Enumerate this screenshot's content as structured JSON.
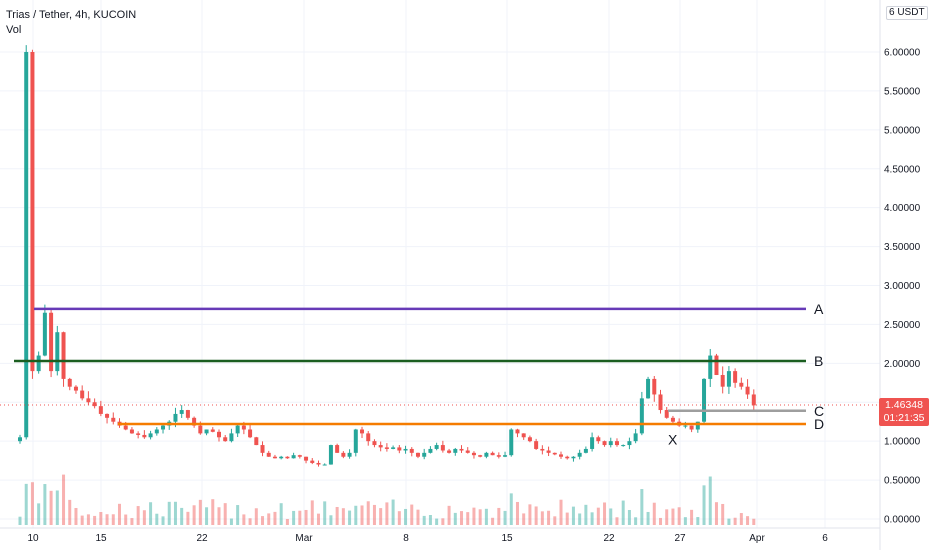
{
  "header": {
    "symbol_line": "Trias / Tether, 4h, KUCOIN",
    "volume_label": "Vol",
    "unit_badge": "6 USDT"
  },
  "price_tag": {
    "price": "1.46348",
    "countdown": "01:21:35",
    "color": "#ef5350"
  },
  "colors": {
    "up": "#26a69a",
    "down": "#ef5350",
    "grid": "#f0f3fa",
    "level_A": "#673ab7",
    "level_B": "#1b5e20",
    "level_C": "#9e9e9e",
    "level_D": "#f57c00"
  },
  "chart_data": {
    "type": "candlestick",
    "title": "Trias / Tether, 4h, KUCOIN",
    "y_ticks": [
      "6.00000",
      "5.50000",
      "5.00000",
      "4.50000",
      "4.00000",
      "3.50000",
      "3.00000",
      "2.50000",
      "2.00000",
      "1.50000",
      "1.00000",
      "0.50000",
      "0.00000"
    ],
    "y_tick_values": [
      6.0,
      5.5,
      5.0,
      4.5,
      4.0,
      3.5,
      3.0,
      2.5,
      2.0,
      1.5,
      1.0,
      0.5,
      0.0
    ],
    "ylim": [
      0,
      6.5
    ],
    "x_ticks": [
      "10",
      "15",
      "22",
      "Mar",
      "8",
      "15",
      "22",
      "27",
      "Apr",
      "6"
    ],
    "grid": true,
    "levels": [
      {
        "label": "A",
        "value": 2.7
      },
      {
        "label": "B",
        "value": 2.03
      },
      {
        "label": "C",
        "value": 1.39
      },
      {
        "label": "D",
        "value": 1.22
      }
    ],
    "annotation": {
      "text": "X",
      "value": 0.98
    },
    "last_price": 1.46348,
    "price_path": [
      [
        0,
        1.0
      ],
      [
        1,
        1.05
      ],
      [
        2,
        6.0
      ],
      [
        3,
        1.9
      ],
      [
        4,
        2.1
      ],
      [
        5,
        2.65
      ],
      [
        6,
        1.9
      ],
      [
        7,
        2.4
      ],
      [
        8,
        1.8
      ],
      [
        9,
        1.7
      ],
      [
        10,
        1.65
      ],
      [
        11,
        1.55
      ],
      [
        12,
        1.5
      ],
      [
        13,
        1.45
      ],
      [
        14,
        1.35
      ],
      [
        15,
        1.3
      ],
      [
        16,
        1.25
      ],
      [
        17,
        1.2
      ],
      [
        18,
        1.15
      ],
      [
        19,
        1.1
      ],
      [
        20,
        1.08
      ],
      [
        21,
        1.05
      ],
      [
        22,
        1.1
      ],
      [
        23,
        1.15
      ],
      [
        24,
        1.2
      ],
      [
        25,
        1.25
      ],
      [
        26,
        1.35
      ],
      [
        27,
        1.4
      ],
      [
        28,
        1.3
      ],
      [
        29,
        1.2
      ],
      [
        30,
        1.1
      ],
      [
        31,
        1.15
      ],
      [
        32,
        1.12
      ],
      [
        33,
        1.05
      ],
      [
        34,
        1.0
      ],
      [
        35,
        1.1
      ],
      [
        36,
        1.2
      ],
      [
        37,
        1.15
      ],
      [
        38,
        1.05
      ],
      [
        39,
        0.95
      ],
      [
        40,
        0.85
      ],
      [
        41,
        0.8
      ],
      [
        42,
        0.78
      ],
      [
        43,
        0.8
      ],
      [
        44,
        0.78
      ],
      [
        45,
        0.82
      ],
      [
        46,
        0.8
      ],
      [
        47,
        0.75
      ],
      [
        48,
        0.72
      ],
      [
        49,
        0.7
      ],
      [
        50,
        0.7
      ],
      [
        51,
        0.95
      ],
      [
        52,
        0.85
      ],
      [
        53,
        0.8
      ],
      [
        54,
        0.85
      ],
      [
        55,
        1.15
      ],
      [
        56,
        1.1
      ],
      [
        57,
        1.0
      ],
      [
        58,
        0.95
      ],
      [
        59,
        0.92
      ],
      [
        60,
        0.9
      ],
      [
        61,
        0.92
      ],
      [
        62,
        0.88
      ],
      [
        63,
        0.9
      ],
      [
        64,
        0.85
      ],
      [
        65,
        0.8
      ],
      [
        66,
        0.85
      ],
      [
        67,
        0.9
      ],
      [
        68,
        0.95
      ],
      [
        69,
        0.88
      ],
      [
        70,
        0.85
      ],
      [
        71,
        0.9
      ],
      [
        72,
        0.88
      ],
      [
        73,
        0.85
      ],
      [
        74,
        0.82
      ],
      [
        75,
        0.8
      ],
      [
        76,
        0.85
      ],
      [
        77,
        0.82
      ],
      [
        78,
        0.8
      ],
      [
        79,
        0.82
      ],
      [
        80,
        1.15
      ],
      [
        81,
        1.1
      ],
      [
        82,
        1.05
      ],
      [
        83,
        1.0
      ],
      [
        84,
        0.9
      ],
      [
        85,
        0.88
      ],
      [
        86,
        0.85
      ],
      [
        87,
        0.83
      ],
      [
        88,
        0.8
      ],
      [
        89,
        0.78
      ],
      [
        90,
        0.8
      ],
      [
        91,
        0.85
      ],
      [
        92,
        0.9
      ],
      [
        93,
        1.05
      ],
      [
        94,
        1.0
      ],
      [
        95,
        0.95
      ],
      [
        96,
        1.0
      ],
      [
        97,
        0.95
      ],
      [
        98,
        0.95
      ],
      [
        99,
        1.0
      ],
      [
        100,
        1.1
      ],
      [
        101,
        1.55
      ],
      [
        102,
        1.8
      ],
      [
        103,
        1.6
      ],
      [
        104,
        1.4
      ],
      [
        105,
        1.3
      ],
      [
        106,
        1.25
      ],
      [
        107,
        1.2
      ],
      [
        108,
        1.2
      ],
      [
        109,
        1.15
      ],
      [
        110,
        1.25
      ],
      [
        111,
        1.8
      ],
      [
        112,
        2.1
      ],
      [
        113,
        1.85
      ],
      [
        114,
        1.7
      ],
      [
        115,
        1.9
      ],
      [
        116,
        1.75
      ],
      [
        117,
        1.7
      ],
      [
        118,
        1.6
      ],
      [
        119,
        1.46
      ]
    ]
  }
}
